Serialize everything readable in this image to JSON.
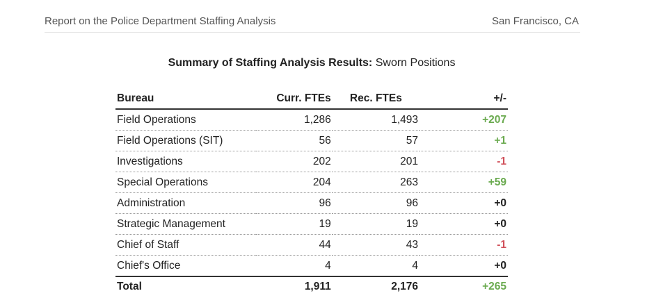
{
  "header": {
    "left": "Report on the Police Department Staffing Analysis",
    "right": "San Francisco, CA"
  },
  "title": {
    "bold": "Summary of Staffing Analysis Results:",
    "normal": "Sworn Positions"
  },
  "table": {
    "columns": [
      "Bureau",
      "Curr. FTEs",
      "Rec. FTEs",
      "+/-"
    ],
    "rows": [
      {
        "bureau": "Field Operations",
        "curr": "1,286",
        "rec": "1,493",
        "diff": "+207",
        "sign": "pos"
      },
      {
        "bureau": "Field Operations (SIT)",
        "curr": "56",
        "rec": "57",
        "diff": "+1",
        "sign": "pos"
      },
      {
        "bureau": "Investigations",
        "curr": "202",
        "rec": "201",
        "diff": "-1",
        "sign": "neg"
      },
      {
        "bureau": "Special Operations",
        "curr": "204",
        "rec": "263",
        "diff": "+59",
        "sign": "pos"
      },
      {
        "bureau": "Administration",
        "curr": "96",
        "rec": "96",
        "diff": "+0",
        "sign": "zero"
      },
      {
        "bureau": "Strategic Management",
        "curr": "19",
        "rec": "19",
        "diff": "+0",
        "sign": "zero"
      },
      {
        "bureau": "Chief of Staff",
        "curr": "44",
        "rec": "43",
        "diff": "-1",
        "sign": "neg"
      },
      {
        "bureau": "Chief's Office",
        "curr": "4",
        "rec": "4",
        "diff": "+0",
        "sign": "zero"
      }
    ],
    "total": {
      "bureau": "Total",
      "curr": "1,911",
      "rec": "2,176",
      "diff": "+265",
      "sign": "pos"
    }
  },
  "colors": {
    "positive": "#6aaa4f",
    "negative": "#d0505a",
    "neutral": "#222222"
  }
}
